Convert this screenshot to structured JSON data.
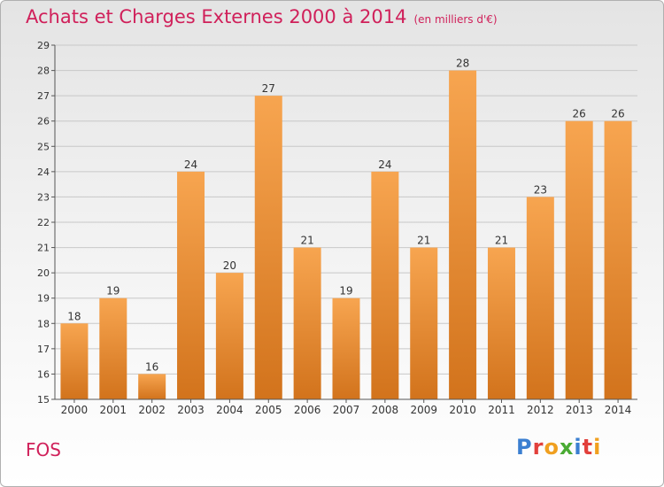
{
  "header": {
    "title": "Achats et Charges Externes 2000 à 2014",
    "subtitle": "(en milliers d'€)"
  },
  "footer": {
    "commune": "FOS",
    "logo_text": "Proxiti"
  },
  "colors": {
    "title": "#d0205a",
    "bar_top": "#f7a550",
    "bar_bottom": "#d2731c",
    "grid": "#c8c8c8",
    "logo_letters": [
      "#3b7fd1",
      "#e2403c",
      "#f0a020",
      "#4aab34",
      "#3b7fd1",
      "#e2403c",
      "#f0a020"
    ]
  },
  "chart_data": {
    "type": "bar",
    "categories": [
      "2000",
      "2001",
      "2002",
      "2003",
      "2004",
      "2005",
      "2006",
      "2007",
      "2008",
      "2009",
      "2010",
      "2011",
      "2012",
      "2013",
      "2014"
    ],
    "values": [
      18,
      19,
      16,
      24,
      20,
      27,
      21,
      19,
      24,
      21,
      28,
      21,
      23,
      26,
      26
    ],
    "ylim": [
      15,
      29
    ],
    "yticks": [
      15,
      16,
      17,
      18,
      19,
      20,
      21,
      22,
      23,
      24,
      25,
      26,
      27,
      28,
      29
    ],
    "grid": true,
    "data_labels": true
  }
}
